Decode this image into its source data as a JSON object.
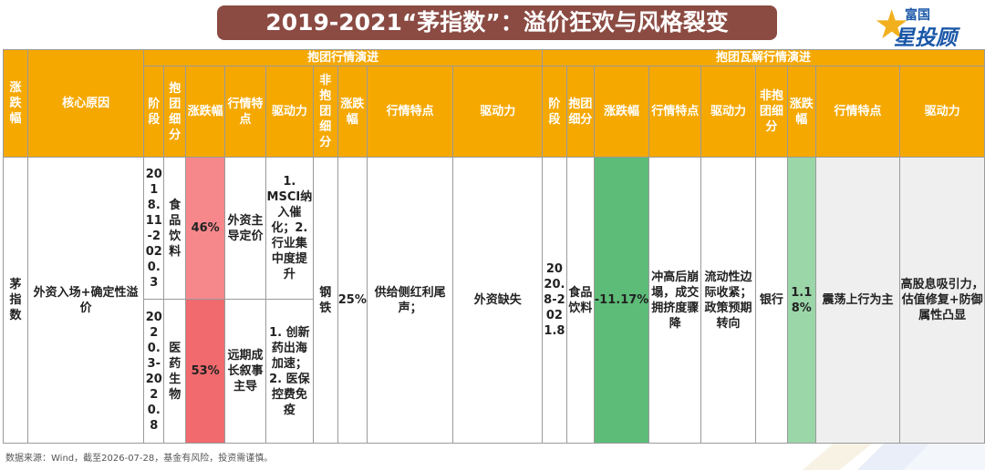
{
  "title": "2019-2021“茅指数”：溢价狂欢与风格裂变",
  "logo": {
    "line1": "富国",
    "line2": "星投顾",
    "icon": "star-icon"
  },
  "header": {
    "col_rise": "涨跌幅",
    "col_reason": "核心原因",
    "group_a": "抱团行情演进",
    "group_b": "抱团瓦解行情演进",
    "stage": "阶段",
    "sub": "抱团细分",
    "rise": "涨跌幅",
    "feature_short": "行情特点",
    "driver_short": "驱动力",
    "non_sub": "非抱团细分",
    "feature": "行情特点",
    "driver": "驱动力"
  },
  "row": {
    "name": "茅指数",
    "reason": "外资入场+确定性溢价",
    "a1": {
      "stage": "2018.11-2020.3",
      "sub": "食品饮料",
      "rise": "46%",
      "feature": "外资主导定价",
      "driver": "1. MSCI纳入催化；2. 行业集中度提升"
    },
    "a2": {
      "stage": "2020.3-2020.8",
      "sub": "医药生物",
      "rise": "53%",
      "feature": "远期成长叙事主导",
      "driver": "1. 创新药出海加速；2. 医保控费免疫"
    },
    "a_non_sub": "钢铁",
    "a_non_rise": "25%",
    "a_non_feature": "供给侧红利尾声；",
    "a_non_driver": "外资缺失",
    "b": {
      "stage": "2020.8-2021.8",
      "sub": "食品饮料",
      "rise": "-11.17%",
      "feature": "冲高后崩塌，成交拥挤度骤降",
      "driver": "流动性边际收紧；政策预期转向"
    },
    "b_non_sub": "银行",
    "b_non_rise": "1.18%",
    "b_non_feature": "震荡上行为主",
    "b_non_driver": "高股息吸引力，估值修复+防御属性凸显"
  },
  "footnote": "数据来源：Wind，截至2026-07-28，基金有风险，投资需谨慎。",
  "colors": {
    "title_bg": "#8b4b43",
    "header_bg": "#f5a800",
    "pink": "#f6888c",
    "red": "#f06a6e",
    "green": "#5dbd78",
    "light_green": "#9bd6a9"
  }
}
